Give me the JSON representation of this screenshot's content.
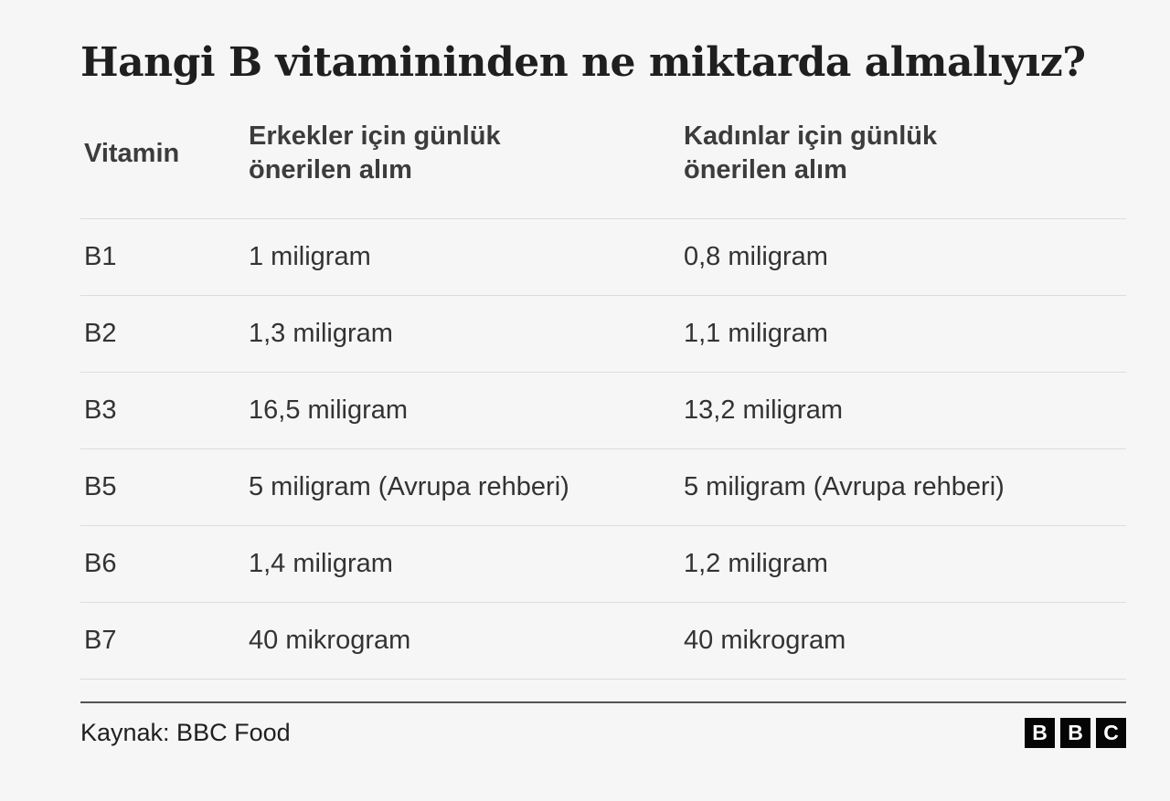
{
  "title": "Hangi B vitamininden ne miktarda almalıyız?",
  "chart_data": {
    "type": "table",
    "title": "Hangi B vitamininden ne miktarda almalıyız?",
    "columns": [
      "Vitamin",
      "Erkekler için günlük önerilen alım",
      "Kadınlar için günlük önerilen alım"
    ],
    "rows": [
      [
        "B1",
        "1 miligram",
        "0,8 miligram"
      ],
      [
        "B2",
        "1,3 miligram",
        "1,1 miligram"
      ],
      [
        "B3",
        "16,5 miligram",
        "13,2 miligram"
      ],
      [
        "B5",
        "5 miligram (Avrupa rehberi)",
        "5 miligram (Avrupa rehberi)"
      ],
      [
        "B6",
        "1,4 miligram",
        "1,2 miligram"
      ],
      [
        "B7",
        "40 mikrogram",
        "40 mikrogram"
      ]
    ],
    "source": "Kaynak: BBC Food",
    "layout": {
      "grid": "horizontal-row-dividers",
      "legend": "none"
    }
  },
  "footer": {
    "source": "Kaynak: BBC Food",
    "logo_letters": [
      "B",
      "B",
      "C"
    ]
  },
  "colors": {
    "background": "#f6f6f6",
    "title_text": "#1f1f1f",
    "header_text": "#3c3c3c",
    "cell_text": "#333333",
    "divider": "#dcdcdc",
    "footer_rule": "#545454",
    "logo_background": "#050505",
    "logo_letter": "#ffffff"
  }
}
